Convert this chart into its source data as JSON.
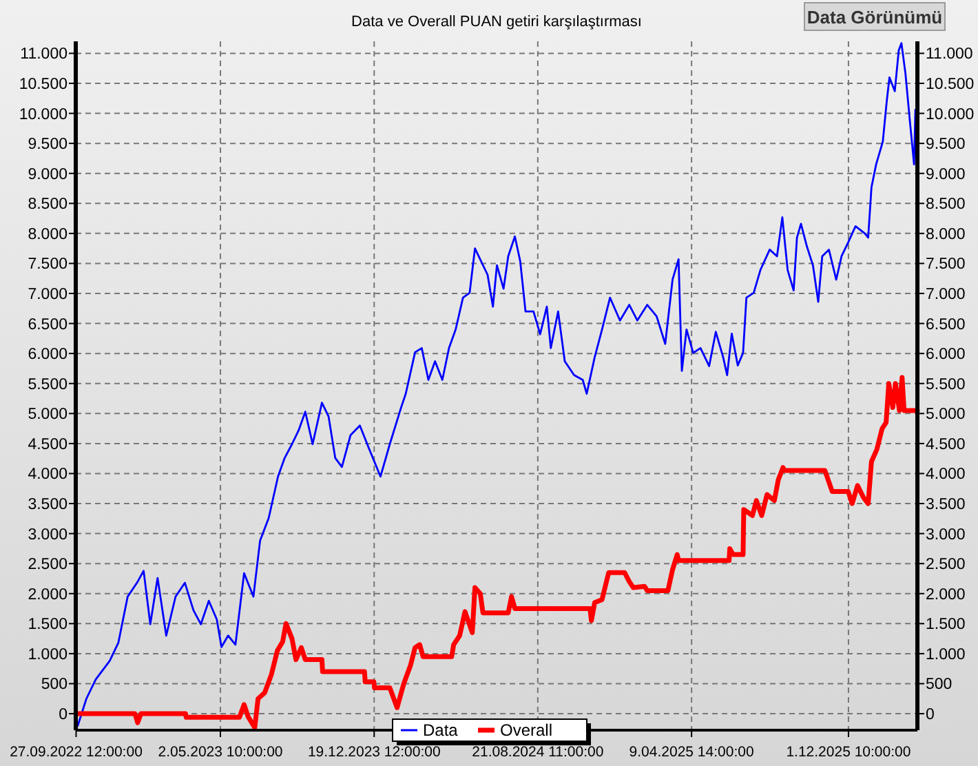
{
  "chart_data": {
    "type": "line",
    "title": "Data ve Overall PUAN getiri karşılaştırması",
    "annotations": [
      "Data Görünümü"
    ],
    "xlim": [
      "2022-09-27",
      "2026-03-15"
    ],
    "xticks": [
      {
        "value": "2022-09-27T12:00",
        "label": "27.09.2022 12:00:00"
      },
      {
        "value": "2023-05-02T10:00",
        "label": "2.05.2023 10:00:00"
      },
      {
        "value": "2023-12-19T12:00",
        "label": "19.12.2023 12:00:00"
      },
      {
        "value": "2024-08-21T11:00",
        "label": "21.08.2024 11:00:00"
      },
      {
        "value": "2025-04-09T14:00",
        "label": "9.04.2025 14:00:00"
      },
      {
        "value": "2025-12-01T10:00",
        "label": "1.12.2025 10:00:00"
      }
    ],
    "ylim": [
      -275,
      11200
    ],
    "yticks": [
      0,
      500,
      {
        "value": 1000,
        "label": "1.000"
      },
      {
        "value": 1500,
        "label": "1.500"
      },
      {
        "value": 2000,
        "label": "2.000"
      },
      {
        "value": 2500,
        "label": "2.500"
      },
      {
        "value": 3000,
        "label": "3.000"
      },
      {
        "value": 3500,
        "label": "3.500"
      },
      {
        "value": 4000,
        "label": "4.000"
      },
      {
        "value": 4500,
        "label": "4.500"
      },
      {
        "value": 5000,
        "label": "5.000"
      },
      {
        "value": 5500,
        "label": "5.500"
      },
      {
        "value": 6000,
        "label": "6.000"
      },
      {
        "value": 6500,
        "label": "6.500"
      },
      {
        "value": 7000,
        "label": "7.000"
      },
      {
        "value": 7500,
        "label": "7.500"
      },
      {
        "value": 8000,
        "label": "8.000"
      },
      {
        "value": 8500,
        "label": "8.500"
      },
      {
        "value": 9000,
        "label": "9.000"
      },
      {
        "value": 9500,
        "label": "9.500"
      },
      {
        "value": 10000,
        "label": "10.000"
      },
      {
        "value": 10500,
        "label": "10.500"
      },
      {
        "value": 11000,
        "label": "11.000"
      }
    ],
    "y2lim": [
      -275,
      11200
    ],
    "y2ticks": [
      0,
      500,
      {
        "value": 1000,
        "label": "1.000"
      },
      {
        "value": 1500,
        "label": "1.500"
      },
      {
        "value": 2000,
        "label": "2.000"
      },
      {
        "value": 2500,
        "label": "2.500"
      },
      {
        "value": 3000,
        "label": "3.000"
      },
      {
        "value": 3500,
        "label": "3.500"
      },
      {
        "value": 4000,
        "label": "4.000"
      },
      {
        "value": 4500,
        "label": "4.500"
      },
      {
        "value": 5000,
        "label": "5.000"
      },
      {
        "value": 5500,
        "label": "5.500"
      },
      {
        "value": 6000,
        "label": "6.000"
      },
      {
        "value": 6500,
        "label": "6.500"
      },
      {
        "value": 7000,
        "label": "7.000"
      },
      {
        "value": 7500,
        "label": "7.500"
      },
      {
        "value": 8000,
        "label": "8.000"
      },
      {
        "value": 8500,
        "label": "8.500"
      },
      {
        "value": 9000,
        "label": "9.000"
      },
      {
        "value": 9500,
        "label": "9.500"
      },
      {
        "value": 10000,
        "label": "10.000"
      },
      {
        "value": 10500,
        "label": "10.500"
      },
      {
        "value": 11000,
        "label": "11.000"
      }
    ],
    "grid": true,
    "legend": "bottom",
    "series": [
      {
        "name": "Data",
        "color": "#0000ff",
        "x": [
          "2022-09-27",
          "2022-09-30",
          "2022-10-13",
          "2022-10-27",
          "2022-11-17",
          "2022-11-30",
          "2022-12-14",
          "2022-12-28",
          "2023-01-07",
          "2023-01-17",
          "2023-01-28",
          "2023-02-10",
          "2023-02-24",
          "2023-03-10",
          "2023-03-23",
          "2023-04-03",
          "2023-04-15",
          "2023-04-27",
          "2023-05-04",
          "2023-05-14",
          "2023-05-25",
          "2023-06-07",
          "2023-06-21",
          "2023-07-01",
          "2023-07-14",
          "2023-07-28",
          "2023-08-07",
          "2023-08-18",
          "2023-08-28",
          "2023-09-07",
          "2023-09-18",
          "2023-10-02",
          "2023-10-12",
          "2023-10-22",
          "2023-11-01",
          "2023-11-14",
          "2023-11-28",
          "2023-12-12",
          "2023-12-29",
          "2024-01-12",
          "2024-01-29",
          "2024-02-05",
          "2024-02-19",
          "2024-02-29",
          "2024-03-10",
          "2024-03-20",
          "2024-03-31",
          "2024-04-10",
          "2024-04-20",
          "2024-05-01",
          "2024-05-11",
          "2024-05-19",
          "2024-06-07",
          "2024-06-15",
          "2024-06-21",
          "2024-07-01",
          "2024-07-08",
          "2024-07-18",
          "2024-07-26",
          "2024-08-03",
          "2024-08-15",
          "2024-08-25",
          "2024-09-04",
          "2024-09-10",
          "2024-09-21",
          "2024-10-01",
          "2024-10-15",
          "2024-10-28",
          "2024-11-03",
          "2024-11-15",
          "2024-11-26",
          "2024-12-08",
          "2024-12-23",
          "2025-01-06",
          "2025-01-18",
          "2025-02-02",
          "2025-02-16",
          "2025-03-01",
          "2025-03-12",
          "2025-03-21",
          "2025-03-26",
          "2025-04-02",
          "2025-04-12",
          "2025-04-23",
          "2025-05-06",
          "2025-05-16",
          "2025-05-27",
          "2025-06-02",
          "2025-06-09",
          "2025-06-18",
          "2025-06-26",
          "2025-07-01",
          "2025-07-12",
          "2025-07-22",
          "2025-08-05",
          "2025-08-16",
          "2025-08-24",
          "2025-09-01",
          "2025-09-10",
          "2025-09-15",
          "2025-09-21",
          "2025-09-30",
          "2025-10-09",
          "2025-10-17",
          "2025-10-23",
          "2025-11-02",
          "2025-11-13",
          "2025-11-21",
          "2025-12-01",
          "2025-12-12",
          "2025-12-26",
          "2025-12-31",
          "2026-01-05",
          "2026-01-12",
          "2026-01-22",
          "2026-01-28",
          "2026-02-01",
          "2026-02-09",
          "2026-02-15",
          "2026-02-19",
          "2026-02-25",
          "2026-03-04",
          "2026-03-10",
          "2026-03-12"
        ],
        "values": [
          -100,
          -200,
          250,
          570,
          880,
          1180,
          1950,
          2180,
          2380,
          1490,
          2260,
          1300,
          1950,
          2180,
          1720,
          1490,
          1880,
          1570,
          1110,
          1300,
          1150,
          2340,
          1950,
          2880,
          3260,
          3950,
          4260,
          4490,
          4720,
          5030,
          4490,
          5180,
          4950,
          4260,
          4110,
          4640,
          4800,
          4410,
          3950,
          4490,
          5100,
          5330,
          6020,
          6090,
          5560,
          5870,
          5560,
          6090,
          6400,
          6930,
          7010,
          7750,
          7310,
          6780,
          7470,
          7080,
          7620,
          7950,
          7540,
          6700,
          6700,
          6320,
          6780,
          6090,
          6700,
          5870,
          5640,
          5560,
          5330,
          5940,
          6400,
          6930,
          6550,
          6810,
          6550,
          6810,
          6620,
          6160,
          7230,
          7570,
          5710,
          6400,
          6010,
          6090,
          5790,
          6360,
          5940,
          5640,
          6330,
          5800,
          6010,
          6930,
          7010,
          7390,
          7730,
          7620,
          8270,
          7390,
          7050,
          7930,
          8160,
          7780,
          7470,
          6860,
          7620,
          7730,
          7230,
          7620,
          7850,
          8120,
          8000,
          7930,
          8770,
          9150,
          9530,
          10210,
          10600,
          10370,
          11050,
          11170,
          10670,
          9840,
          9150,
          10060
        ]
      },
      {
        "name": "Overall",
        "color": "#ff0000",
        "x": [
          "2022-09-27",
          "2022-12-25",
          "2022-12-29",
          "2023-01-03",
          "2023-03-11",
          "2023-03-12",
          "2023-05-31",
          "2023-06-07",
          "2023-06-13",
          "2023-06-23",
          "2023-06-28",
          "2023-07-08",
          "2023-07-18",
          "2023-07-27",
          "2023-08-04",
          "2023-08-09",
          "2023-08-18",
          "2023-08-24",
          "2023-09-01",
          "2023-09-07",
          "2023-10-02",
          "2023-10-03",
          "2023-12-05",
          "2023-12-06",
          "2023-12-19",
          "2023-12-20",
          "2024-01-12",
          "2024-01-23",
          "2024-02-02",
          "2024-02-12",
          "2024-02-19",
          "2024-02-26",
          "2024-03-02",
          "2024-04-14",
          "2024-04-17",
          "2024-04-26",
          "2024-05-04",
          "2024-05-15",
          "2024-05-19",
          "2024-05-27",
          "2024-05-31",
          "2024-07-08",
          "2024-07-13",
          "2024-07-18",
          "2024-11-08",
          "2024-11-10",
          "2024-11-15",
          "2024-11-26",
          "2024-12-06",
          "2024-12-30",
          "2025-01-06",
          "2025-01-12",
          "2025-01-29",
          "2025-02-02",
          "2025-03-05",
          "2025-03-12",
          "2025-03-19",
          "2025-03-21",
          "2025-06-05",
          "2025-06-06",
          "2025-06-11",
          "2025-06-26",
          "2025-06-27",
          "2025-07-10",
          "2025-07-16",
          "2025-07-24",
          "2025-08-01",
          "2025-08-12",
          "2025-08-18",
          "2025-08-25",
          "2025-08-27",
          "2025-10-27",
          "2025-11-07",
          "2025-12-01",
          "2025-12-07",
          "2025-12-15",
          "2025-12-24",
          "2025-12-31",
          "2026-01-05",
          "2026-01-13",
          "2026-01-21",
          "2026-01-27",
          "2026-01-31",
          "2026-02-06",
          "2026-02-10",
          "2026-02-16",
          "2026-02-20",
          "2026-02-23",
          "2026-03-15"
        ],
        "values": [
          0,
          0,
          -150,
          0,
          0,
          -60,
          -60,
          150,
          -50,
          -230,
          250,
          350,
          650,
          1050,
          1200,
          1500,
          1250,
          900,
          1100,
          900,
          900,
          700,
          700,
          530,
          530,
          430,
          430,
          100,
          500,
          800,
          1100,
          1150,
          950,
          950,
          1150,
          1300,
          1700,
          1350,
          2100,
          2000,
          1680,
          1680,
          1950,
          1750,
          1750,
          1550,
          1850,
          1900,
          2350,
          2350,
          2200,
          2100,
          2120,
          2050,
          2050,
          2400,
          2650,
          2550,
          2550,
          2750,
          2650,
          2650,
          3400,
          3300,
          3550,
          3300,
          3650,
          3550,
          3900,
          4100,
          4050,
          4050,
          3700,
          3700,
          3500,
          3800,
          3600,
          3500,
          4200,
          4400,
          4750,
          4850,
          5500,
          5100,
          5500,
          5050,
          5600,
          5050,
          5050
        ]
      }
    ]
  }
}
